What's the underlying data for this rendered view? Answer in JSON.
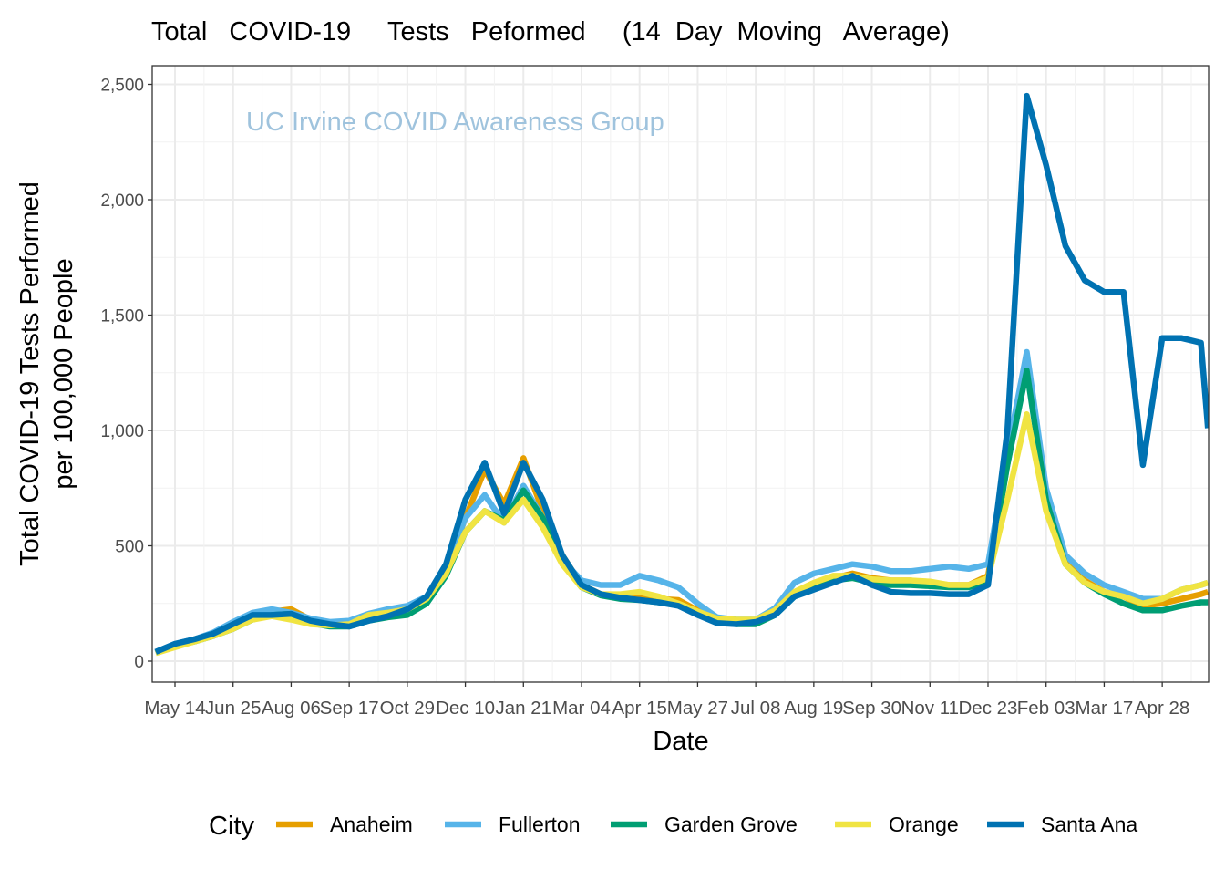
{
  "chart_data": {
    "type": "line",
    "title": "Total   COVID-19     Tests   Peformed     (14  Day  Moving   Average)",
    "xlabel": "Date",
    "ylabel": [
      "Total COVID-19 Tests Performed",
      "per 100,000 People"
    ],
    "watermark": "UC Irvine COVID Awareness Group",
    "ylim": [
      -80,
      2600
    ],
    "xlim": [
      "2020-04-30",
      "2022-05-31"
    ],
    "grid": true,
    "legend_position": "bottom",
    "legend_title": "City",
    "y_ticks": [
      {
        "value": 0,
        "label": "0"
      },
      {
        "value": 500,
        "label": "500"
      },
      {
        "value": 1000,
        "label": "1,000"
      },
      {
        "value": 1500,
        "label": "1,500"
      },
      {
        "value": 2000,
        "label": "2,000"
      },
      {
        "value": 2500,
        "label": "2,500"
      }
    ],
    "x_ticks": [
      {
        "date": "2020-05-14",
        "label": "May 14"
      },
      {
        "date": "2020-06-25",
        "label": "Jun 25"
      },
      {
        "date": "2020-08-06",
        "label": "Aug 06"
      },
      {
        "date": "2020-09-17",
        "label": "Sep 17"
      },
      {
        "date": "2020-10-29",
        "label": "Oct 29"
      },
      {
        "date": "2020-12-10",
        "label": "Dec 10"
      },
      {
        "date": "2021-01-21",
        "label": "Jan 21"
      },
      {
        "date": "2021-03-04",
        "label": "Mar 04"
      },
      {
        "date": "2021-04-15",
        "label": "Apr 15"
      },
      {
        "date": "2021-05-27",
        "label": "May 27"
      },
      {
        "date": "2021-07-08",
        "label": "Jul 08"
      },
      {
        "date": "2021-08-19",
        "label": "Aug 19"
      },
      {
        "date": "2021-09-30",
        "label": "Sep 30"
      },
      {
        "date": "2021-11-11",
        "label": "Nov 11"
      },
      {
        "date": "2021-12-23",
        "label": "Dec 23"
      },
      {
        "date": "2022-02-03",
        "label": "Feb 03"
      },
      {
        "date": "2022-03-17",
        "label": "Mar 17"
      },
      {
        "date": "2022-04-28",
        "label": "Apr 28"
      }
    ],
    "x": [
      "2020-04-30",
      "2020-05-14",
      "2020-05-28",
      "2020-06-11",
      "2020-06-25",
      "2020-07-09",
      "2020-07-23",
      "2020-08-06",
      "2020-08-20",
      "2020-09-03",
      "2020-09-17",
      "2020-10-01",
      "2020-10-15",
      "2020-10-29",
      "2020-11-12",
      "2020-11-26",
      "2020-12-10",
      "2020-12-24",
      "2021-01-07",
      "2021-01-21",
      "2021-02-04",
      "2021-02-18",
      "2021-03-04",
      "2021-03-18",
      "2021-04-01",
      "2021-04-15",
      "2021-04-29",
      "2021-05-13",
      "2021-05-27",
      "2021-06-10",
      "2021-06-24",
      "2021-07-08",
      "2021-07-22",
      "2021-08-05",
      "2021-08-19",
      "2021-09-02",
      "2021-09-16",
      "2021-09-30",
      "2021-10-14",
      "2021-10-28",
      "2021-11-11",
      "2021-11-25",
      "2021-12-09",
      "2021-12-23",
      "2022-01-06",
      "2022-01-20",
      "2022-02-03",
      "2022-02-17",
      "2022-03-03",
      "2022-03-17",
      "2022-03-31",
      "2022-04-14",
      "2022-04-28",
      "2022-05-12",
      "2022-05-26",
      "2022-05-31"
    ],
    "series": [
      {
        "name": "Anaheim",
        "color": "#E69F00",
        "values": [
          40,
          70,
          95,
          120,
          155,
          195,
          215,
          225,
          180,
          160,
          155,
          185,
          200,
          215,
          270,
          400,
          620,
          830,
          680,
          880,
          650,
          460,
          330,
          290,
          275,
          275,
          270,
          265,
          220,
          180,
          170,
          175,
          210,
          290,
          330,
          360,
          380,
          360,
          350,
          350,
          340,
          330,
          330,
          370,
          850,
          1280,
          720,
          430,
          350,
          300,
          280,
          240,
          250,
          270,
          290,
          300
        ]
      },
      {
        "name": "Fullerton",
        "color": "#56B4E9",
        "values": [
          40,
          75,
          95,
          125,
          170,
          210,
          225,
          210,
          185,
          170,
          175,
          205,
          225,
          240,
          280,
          410,
          620,
          720,
          600,
          760,
          620,
          440,
          350,
          330,
          330,
          370,
          350,
          320,
          250,
          190,
          180,
          180,
          230,
          340,
          380,
          400,
          420,
          410,
          390,
          390,
          400,
          410,
          400,
          420,
          900,
          1340,
          750,
          460,
          380,
          330,
          300,
          270,
          270,
          310,
          330,
          340
        ]
      },
      {
        "name": "Garden Grove",
        "color": "#009E73",
        "values": [
          35,
          65,
          85,
          110,
          140,
          180,
          200,
          205,
          165,
          150,
          150,
          175,
          190,
          200,
          250,
          370,
          560,
          650,
          610,
          740,
          620,
          430,
          320,
          285,
          270,
          265,
          255,
          245,
          205,
          170,
          160,
          160,
          200,
          280,
          320,
          350,
          360,
          340,
          330,
          330,
          325,
          320,
          320,
          350,
          850,
          1260,
          700,
          420,
          340,
          290,
          250,
          220,
          220,
          240,
          255,
          255
        ]
      },
      {
        "name": "Orange",
        "color": "#F0E442",
        "values": [
          35,
          60,
          85,
          110,
          140,
          180,
          195,
          180,
          160,
          155,
          160,
          200,
          210,
          225,
          270,
          380,
          560,
          650,
          600,
          700,
          580,
          420,
          320,
          290,
          290,
          300,
          280,
          250,
          215,
          185,
          180,
          180,
          220,
          300,
          340,
          370,
          370,
          355,
          350,
          350,
          345,
          330,
          330,
          360,
          700,
          1070,
          650,
          420,
          340,
          300,
          280,
          250,
          270,
          310,
          330,
          340
        ]
      },
      {
        "name": "Santa Ana",
        "color": "#0072B2",
        "values": [
          40,
          75,
          95,
          120,
          160,
          200,
          200,
          205,
          175,
          160,
          150,
          175,
          195,
          225,
          280,
          420,
          700,
          860,
          640,
          860,
          700,
          460,
          330,
          290,
          275,
          265,
          255,
          240,
          200,
          165,
          160,
          170,
          200,
          280,
          310,
          340,
          370,
          330,
          300,
          295,
          295,
          290,
          290,
          330,
          1000,
          2450,
          2150,
          1800,
          1650,
          1600,
          1600,
          850,
          1400,
          1400,
          1380,
          1010
        ]
      }
    ]
  }
}
